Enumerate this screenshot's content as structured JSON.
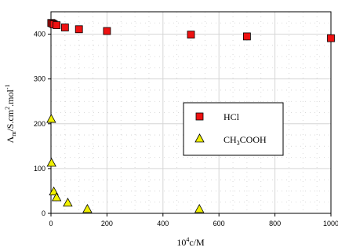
{
  "chart_data": {
    "type": "scatter",
    "xlabel": {
      "base": "10",
      "sup": "4",
      "rest": "c/M"
    },
    "ylabel": {
      "lambda": "Λ",
      "sub": "m",
      "mid": "/S.cm",
      "sup1": "2",
      "mid2": ".mol",
      "sup2": "-1"
    },
    "xlim": [
      0,
      1000
    ],
    "ylim": [
      0,
      450
    ],
    "x_ticks": [
      0,
      200,
      400,
      600,
      800,
      1000
    ],
    "y_ticks": [
      0,
      100,
      200,
      300,
      400
    ],
    "grid": true,
    "legend_position": "center-right",
    "series": [
      {
        "name": "HCl",
        "marker": "square",
        "color": "#ee1111",
        "points": [
          [
            1,
            425
          ],
          [
            5,
            424
          ],
          [
            10,
            422
          ],
          [
            20,
            420
          ],
          [
            50,
            415
          ],
          [
            100,
            411
          ],
          [
            200,
            407
          ],
          [
            500,
            399
          ],
          [
            700,
            395
          ],
          [
            1000,
            391
          ]
        ]
      },
      {
        "name": "CH3COOH",
        "name_parts": {
          "a": "CH",
          "sub": "3",
          "b": "COOH"
        },
        "marker": "triangle",
        "color": "#f0f000",
        "points": [
          [
            1,
            210
          ],
          [
            2,
            112
          ],
          [
            10,
            48
          ],
          [
            20,
            35
          ],
          [
            60,
            23
          ],
          [
            130,
            9
          ],
          [
            530,
            9
          ]
        ]
      }
    ]
  }
}
